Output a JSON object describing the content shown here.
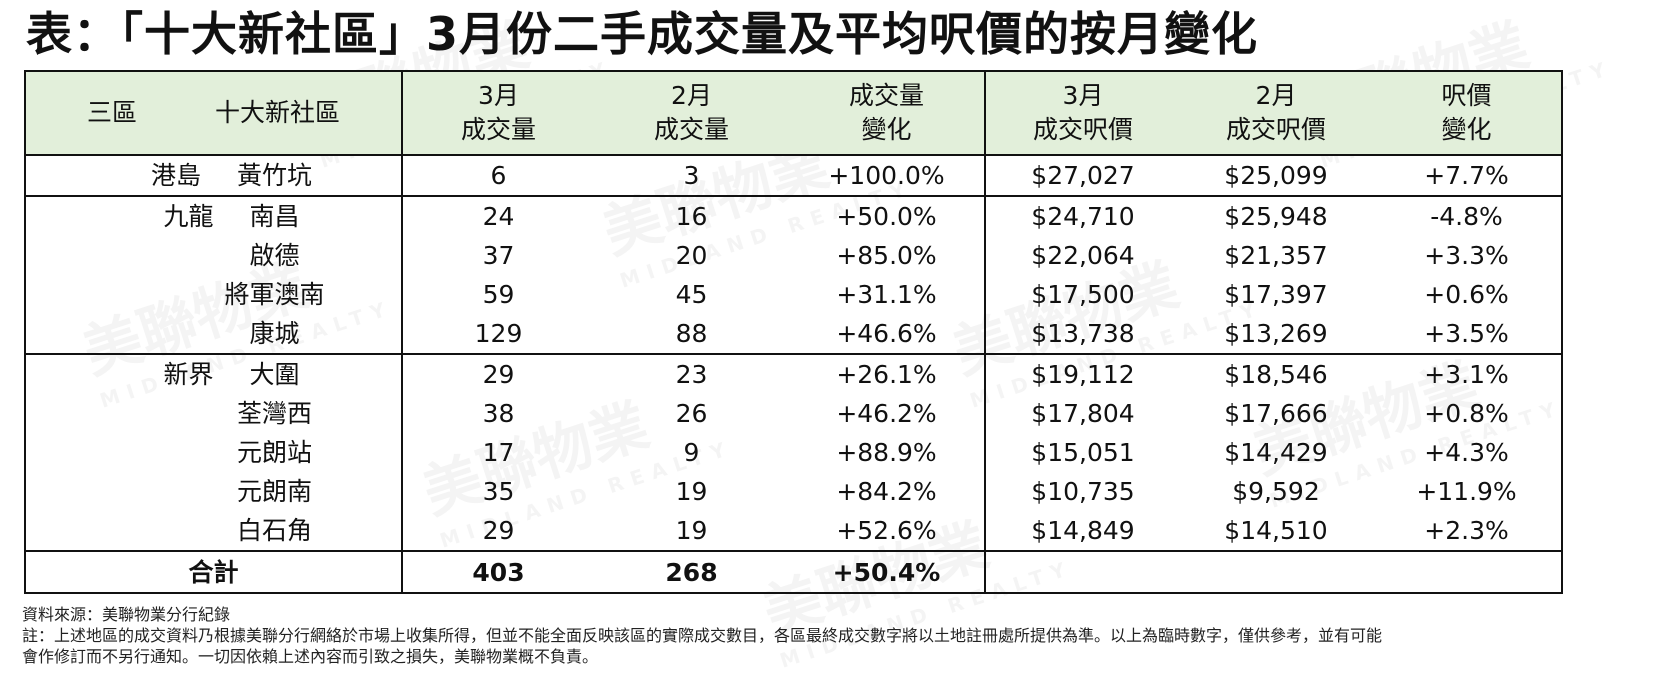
{
  "title": "表：「十大新社區」3月份二手成交量及平均呎價的按月變化",
  "watermark": "美聯物業",
  "watermark_sub": "MIDLAND REALTY",
  "headers": {
    "region": "三區",
    "district": "十大新社區",
    "mar_vol_1": "3月",
    "mar_vol_2": "成交量",
    "feb_vol_1": "2月",
    "feb_vol_2": "成交量",
    "vol_chg_1": "成交量",
    "vol_chg_2": "變化",
    "mar_price_1": "3月",
    "mar_price_2": "成交呎價",
    "feb_price_1": "2月",
    "feb_price_2": "成交呎價",
    "price_chg_1": "呎價",
    "price_chg_2": "變化"
  },
  "rows": [
    {
      "region": "港島",
      "district": "黃竹坑",
      "mar_vol": "6",
      "feb_vol": "3",
      "vol_chg": "+100.0%",
      "mar_price": "$27,027",
      "feb_price": "$25,099",
      "price_chg": "+7.7%"
    },
    {
      "region": "九龍",
      "district": "南昌",
      "mar_vol": "24",
      "feb_vol": "16",
      "vol_chg": "+50.0%",
      "mar_price": "$24,710",
      "feb_price": "$25,948",
      "price_chg": "-4.8%"
    },
    {
      "region": "",
      "district": "啟德",
      "mar_vol": "37",
      "feb_vol": "20",
      "vol_chg": "+85.0%",
      "mar_price": "$22,064",
      "feb_price": "$21,357",
      "price_chg": "+3.3%"
    },
    {
      "region": "",
      "district": "將軍澳南",
      "mar_vol": "59",
      "feb_vol": "45",
      "vol_chg": "+31.1%",
      "mar_price": "$17,500",
      "feb_price": "$17,397",
      "price_chg": "+0.6%"
    },
    {
      "region": "",
      "district": "康城",
      "mar_vol": "129",
      "feb_vol": "88",
      "vol_chg": "+46.6%",
      "mar_price": "$13,738",
      "feb_price": "$13,269",
      "price_chg": "+3.5%"
    },
    {
      "region": "新界",
      "district": "大圍",
      "mar_vol": "29",
      "feb_vol": "23",
      "vol_chg": "+26.1%",
      "mar_price": "$19,112",
      "feb_price": "$18,546",
      "price_chg": "+3.1%"
    },
    {
      "region": "",
      "district": "荃灣西",
      "mar_vol": "38",
      "feb_vol": "26",
      "vol_chg": "+46.2%",
      "mar_price": "$17,804",
      "feb_price": "$17,666",
      "price_chg": "+0.8%"
    },
    {
      "region": "",
      "district": "元朗站",
      "mar_vol": "17",
      "feb_vol": "9",
      "vol_chg": "+88.9%",
      "mar_price": "$15,051",
      "feb_price": "$14,429",
      "price_chg": "+4.3%"
    },
    {
      "region": "",
      "district": "元朗南",
      "mar_vol": "35",
      "feb_vol": "19",
      "vol_chg": "+84.2%",
      "mar_price": "$10,735",
      "feb_price": "$9,592",
      "price_chg": "+11.9%"
    },
    {
      "region": "",
      "district": "白石角",
      "mar_vol": "29",
      "feb_vol": "19",
      "vol_chg": "+52.6%",
      "mar_price": "$14,849",
      "feb_price": "$14,510",
      "price_chg": "+2.3%"
    }
  ],
  "total": {
    "label": "合計",
    "mar_vol": "403",
    "feb_vol": "268",
    "vol_chg": "+50.4%"
  },
  "notes": {
    "source": "資料來源：美聯物業分行紀錄",
    "note_1": "註：上述地區的成交資料乃根據美聯分行網絡於市場上收集所得，但並不能全面反映該區的實際成交數目，各區最終成交數字將以土地註冊處所提供為準。以上為臨時數字，僅供參考，並有可能",
    "note_2": "會作修訂而不另行通知。一切因依賴上述內容而引致之損失，美聯物業概不負責。"
  }
}
